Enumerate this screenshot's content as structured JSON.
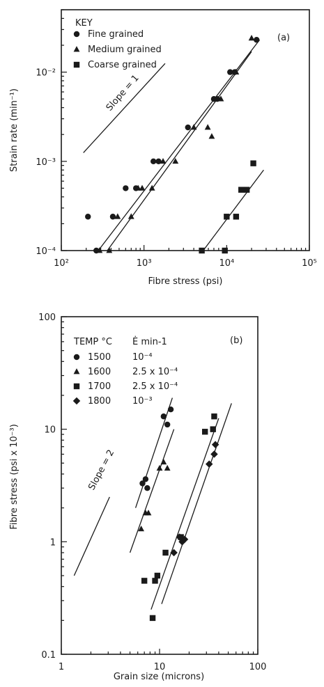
{
  "colors": {
    "ink": "#1a1a1a",
    "background": "#ffffff"
  },
  "chart_data": [
    {
      "type": "scatter",
      "panel_label": "(a)",
      "xlabel": "Fibre stress (psi)",
      "ylabel": "Strain rate (min⁻¹)",
      "xscale": "log",
      "yscale": "log",
      "xlim": [
        100,
        100000
      ],
      "ylim": [
        0.0001,
        0.05
      ],
      "x_ticks": [
        100,
        1000,
        10000,
        100000
      ],
      "x_tick_labels": [
        "10²",
        "10³",
        "10⁴",
        "10⁵"
      ],
      "y_ticks": [
        0.0001,
        0.001,
        0.01
      ],
      "y_tick_labels": [
        "10⁻⁴",
        "10⁻³",
        "10⁻²"
      ],
      "legend": {
        "title": "KEY",
        "placement": "top-left"
      },
      "annotation": "Slope = 1",
      "reference_line": {
        "label": "Slope = 1",
        "from": [
          185,
          0.00125
        ],
        "to": [
          1800,
          0.0125
        ]
      },
      "series": [
        {
          "name": "Fine grained",
          "marker": "circle",
          "points": [
            [
              210,
              0.00024
            ],
            [
              265,
              0.0001
            ],
            [
              420,
              0.00024
            ],
            [
              600,
              0.0005
            ],
            [
              800,
              0.0005
            ],
            [
              1300,
              0.001
            ],
            [
              1500,
              0.001
            ],
            [
              3400,
              0.0024
            ],
            [
              7000,
              0.005
            ],
            [
              7700,
              0.005
            ],
            [
              11000,
              0.01
            ],
            [
              12500,
              0.01
            ],
            [
              23000,
              0.023
            ]
          ],
          "fit_line": {
            "from": [
              280,
              0.0001
            ],
            "to": [
              25000,
              0.023
            ]
          }
        },
        {
          "name": "Medium grained",
          "marker": "triangle",
          "points": [
            [
              290,
              0.0001
            ],
            [
              380,
              0.0001
            ],
            [
              480,
              0.00024
            ],
            [
              700,
              0.00024
            ],
            [
              850,
              0.0005
            ],
            [
              950,
              0.0005
            ],
            [
              1250,
              0.0005
            ],
            [
              1700,
              0.001
            ],
            [
              2400,
              0.001
            ],
            [
              4000,
              0.0024
            ],
            [
              5900,
              0.0024
            ],
            [
              6600,
              0.0019
            ],
            [
              8500,
              0.005
            ],
            [
              13000,
              0.01
            ],
            [
              20000,
              0.024
            ]
          ],
          "fit_line": {
            "from": [
              360,
              0.0001
            ],
            "to": [
              20000,
              0.017
            ]
          }
        },
        {
          "name": "Coarse grained",
          "marker": "square",
          "points": [
            [
              5000,
              0.0001
            ],
            [
              9500,
              0.0001
            ],
            [
              10000,
              0.00024
            ],
            [
              13000,
              0.00024
            ],
            [
              15000,
              0.00048
            ],
            [
              17500,
              0.00048
            ],
            [
              21000,
              0.00095
            ]
          ],
          "fit_line": {
            "from": [
              5200,
              0.0001
            ],
            "to": [
              28000,
              0.0008
            ]
          }
        }
      ]
    },
    {
      "type": "scatter",
      "panel_label": "(b)",
      "xlabel": "Grain size (microns)",
      "ylabel": "Fibre stress (psi x 10⁻³)",
      "xscale": "log",
      "yscale": "log",
      "xlim": [
        1,
        100
      ],
      "ylim": [
        0.1,
        100
      ],
      "x_ticks": [
        1,
        10,
        100
      ],
      "x_tick_labels": [
        "1",
        "10",
        "100"
      ],
      "y_ticks": [
        0.1,
        1,
        10,
        100
      ],
      "y_tick_labels": [
        "0.1",
        "1",
        "10",
        "100"
      ],
      "legend": {
        "placement": "top-left",
        "header_temp": "TEMP °C",
        "header_rate": "Ė min-1",
        "rates": [
          "10⁻⁴",
          "2.5 x 10⁻⁴",
          "2.5 x 10⁻⁴",
          "10⁻³"
        ]
      },
      "annotation": "Slope = 2",
      "reference_line": {
        "label": "Slope = 2",
        "from": [
          1.35,
          0.5
        ],
        "to": [
          3.1,
          2.5
        ]
      },
      "series": [
        {
          "name": "1500",
          "marker": "circle",
          "points": [
            [
              6.7,
              3.3
            ],
            [
              7.2,
              3.6
            ],
            [
              7.5,
              3.0
            ],
            [
              11.0,
              13.0
            ],
            [
              12.0,
              11.0
            ],
            [
              13.0,
              15.0
            ]
          ],
          "fit_line": {
            "from": [
              5.7,
              2.0
            ],
            "to": [
              13.5,
              19.0
            ]
          }
        },
        {
          "name": "1600",
          "marker": "triangle",
          "points": [
            [
              6.5,
              1.3
            ],
            [
              7.2,
              1.8
            ],
            [
              7.7,
              1.8
            ],
            [
              10.0,
              4.5
            ],
            [
              11.0,
              5.1
            ],
            [
              12.0,
              4.5
            ]
          ],
          "fit_line": {
            "from": [
              5.0,
              0.8
            ],
            "to": [
              14.0,
              10.0
            ]
          }
        },
        {
          "name": "1700",
          "marker": "square",
          "points": [
            [
              7.0,
              0.45
            ],
            [
              8.5,
              0.21
            ],
            [
              9.0,
              0.45
            ],
            [
              9.5,
              0.5
            ],
            [
              11.5,
              0.8
            ],
            [
              16.5,
              1.1
            ],
            [
              29.0,
              9.5
            ],
            [
              35.0,
              10.0
            ],
            [
              36.0,
              13.0
            ]
          ],
          "fit_line": {
            "from": [
              8.2,
              0.25
            ],
            "to": [
              40.0,
              12.5
            ]
          }
        },
        {
          "name": "1800",
          "marker": "diamond",
          "points": [
            [
              14.0,
              0.8
            ],
            [
              16.0,
              1.1
            ],
            [
              17.0,
              1.0
            ],
            [
              18.0,
              1.05
            ],
            [
              32.0,
              4.9
            ],
            [
              36.0,
              6.0
            ],
            [
              37.0,
              7.3
            ]
          ],
          "fit_line": {
            "from": [
              10.5,
              0.28
            ],
            "to": [
              54.0,
              17.0
            ]
          }
        }
      ]
    }
  ]
}
